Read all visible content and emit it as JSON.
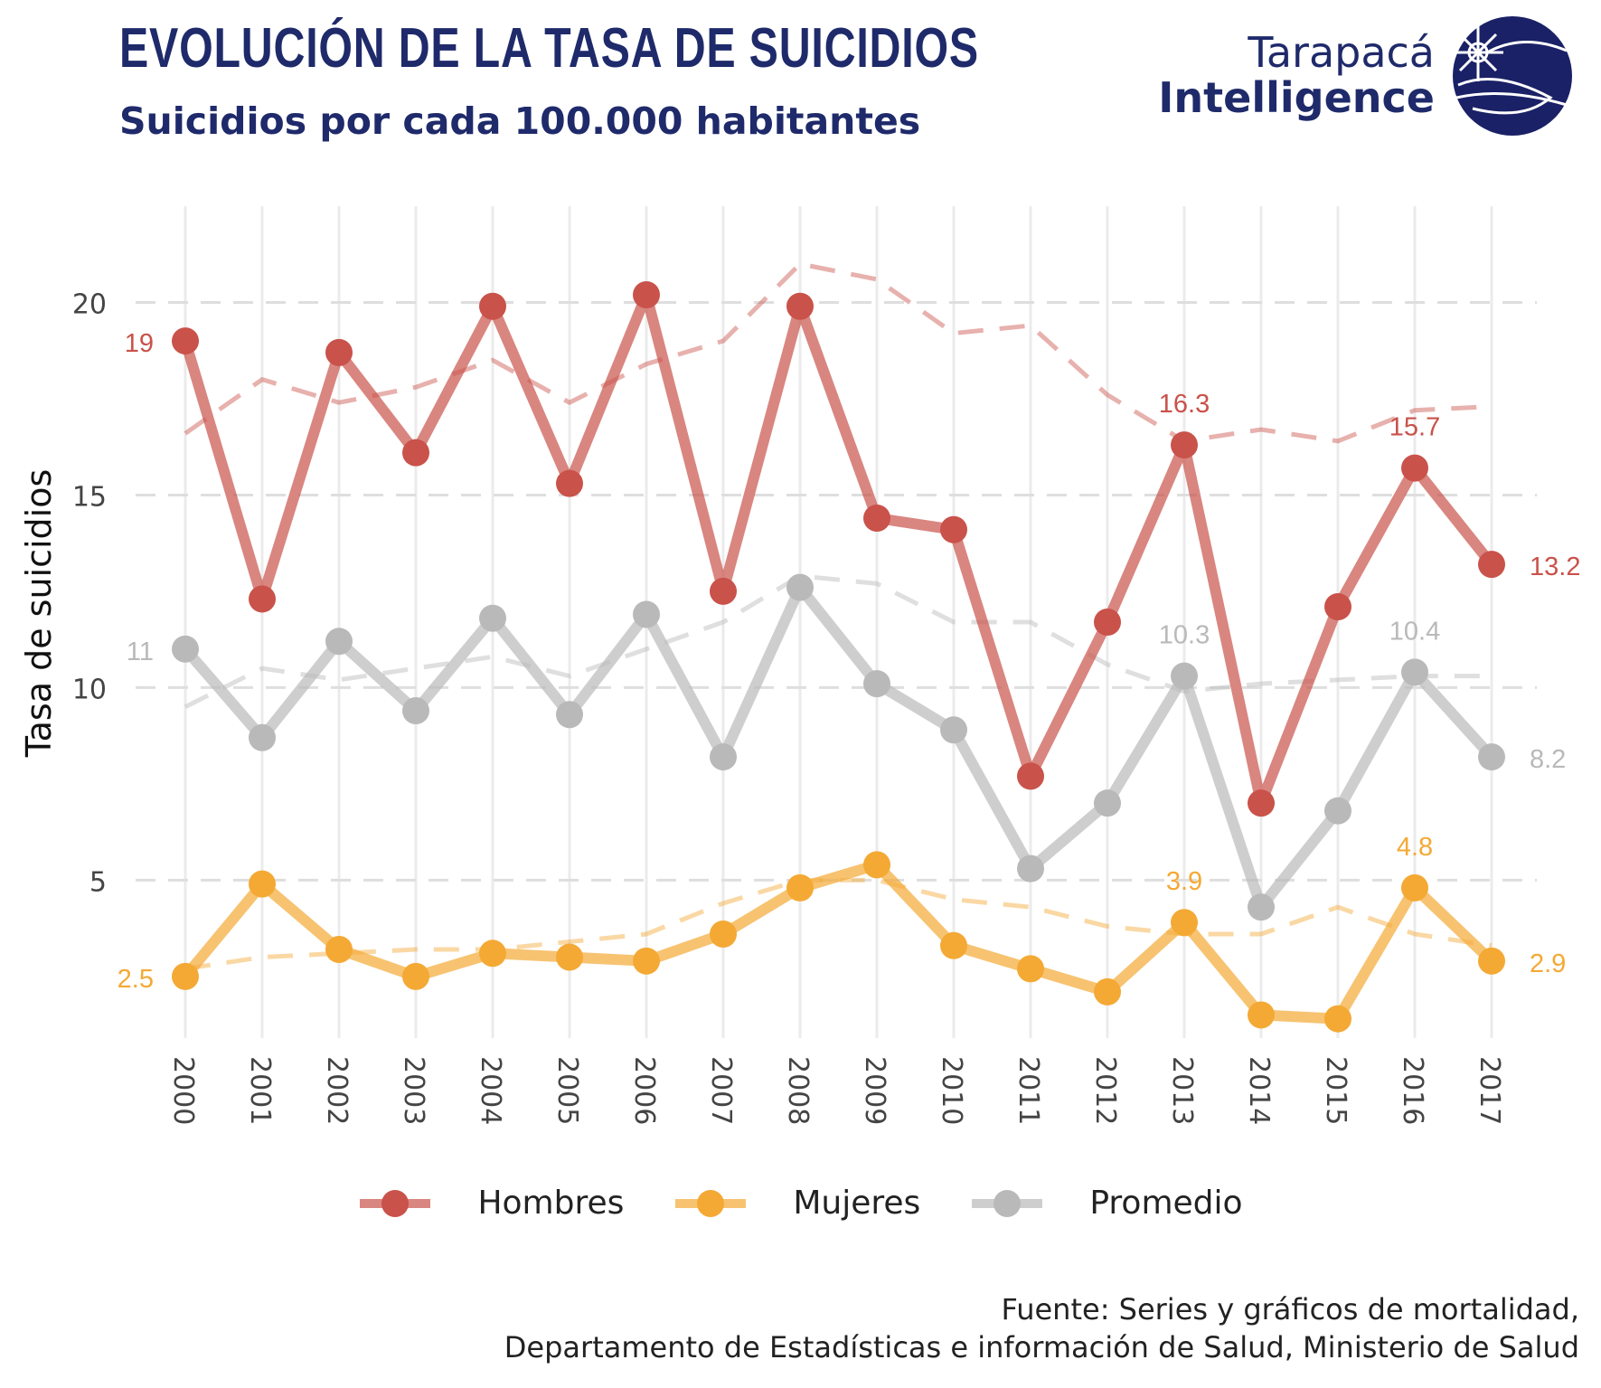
{
  "title": "EVOLUCIÓN DE LA TASA DE SUICIDIOS",
  "subtitle": "Suicidios por cada 100.000 habitantes",
  "logo": {
    "line1": "Tarapacá",
    "line2": "Intelligence",
    "color": "#1a2166"
  },
  "source": {
    "line1": "Fuente: Series y gráficos de mortalidad,",
    "line2": "Departamento de Estadísticas e información de Salud, Ministerio de Salud"
  },
  "chart_data": {
    "type": "line",
    "ylabel": "Tasa de suicidios",
    "xlabel": "",
    "ylim": [
      0.9,
      22.5
    ],
    "yticks": [
      "5",
      "10",
      "15",
      "20"
    ],
    "ytick_values": [
      5,
      10,
      15,
      20
    ],
    "x": [
      "2000",
      "2001",
      "2002",
      "2003",
      "2004",
      "2005",
      "2006",
      "2007",
      "2008",
      "2009",
      "2010",
      "2011",
      "2012",
      "2013",
      "2014",
      "2015",
      "2016",
      "2017"
    ],
    "grid": true,
    "legend_position": "bottom",
    "series": [
      {
        "name": "Hombres",
        "color": "#c9524a",
        "values": [
          19.0,
          12.3,
          18.7,
          16.1,
          19.9,
          15.3,
          20.2,
          12.5,
          19.9,
          14.4,
          14.1,
          7.7,
          11.7,
          16.3,
          7.0,
          12.1,
          15.7,
          13.2
        ],
        "trend": [
          16.6,
          18.0,
          17.4,
          17.8,
          18.5,
          17.4,
          18.4,
          19.0,
          21.0,
          20.6,
          19.2,
          19.4,
          17.6,
          16.4,
          16.7,
          16.4,
          17.2,
          17.3
        ],
        "labels": [
          {
            "x": "2000",
            "text": "19"
          },
          {
            "x": "2013",
            "text": "16.3"
          },
          {
            "x": "2016",
            "text": "15.7"
          },
          {
            "x": "2017",
            "text": "13.2"
          }
        ]
      },
      {
        "name": "Mujeres",
        "color": "#f4a935",
        "values": [
          2.5,
          4.9,
          3.2,
          2.5,
          3.1,
          3.0,
          2.9,
          3.6,
          4.8,
          5.4,
          3.3,
          2.7,
          2.1,
          3.9,
          1.5,
          1.4,
          4.8,
          2.9
        ],
        "trend": [
          2.7,
          3.0,
          3.1,
          3.2,
          3.2,
          3.4,
          3.6,
          4.4,
          5.0,
          5.0,
          4.5,
          4.3,
          3.8,
          3.6,
          3.6,
          4.3,
          3.6,
          3.3
        ],
        "labels": [
          {
            "x": "2000",
            "text": "2.5"
          },
          {
            "x": "2013",
            "text": "3.9"
          },
          {
            "x": "2016",
            "text": "4.8"
          },
          {
            "x": "2017",
            "text": "2.9"
          }
        ]
      },
      {
        "name": "Promedio",
        "color": "#b9b9b9",
        "values": [
          11.0,
          8.7,
          11.2,
          9.4,
          11.8,
          9.3,
          11.9,
          8.2,
          12.6,
          10.1,
          8.9,
          5.3,
          7.0,
          10.3,
          4.3,
          6.8,
          10.4,
          8.2
        ],
        "trend": [
          9.5,
          10.5,
          10.2,
          10.5,
          10.8,
          10.3,
          11.0,
          11.7,
          12.9,
          12.7,
          11.7,
          11.7,
          10.6,
          9.9,
          10.1,
          10.2,
          10.3,
          10.3
        ],
        "labels": [
          {
            "x": "2000",
            "text": "11"
          },
          {
            "x": "2013",
            "text": "10.3"
          },
          {
            "x": "2016",
            "text": "10.4"
          },
          {
            "x": "2017",
            "text": "8.2"
          }
        ]
      }
    ]
  }
}
